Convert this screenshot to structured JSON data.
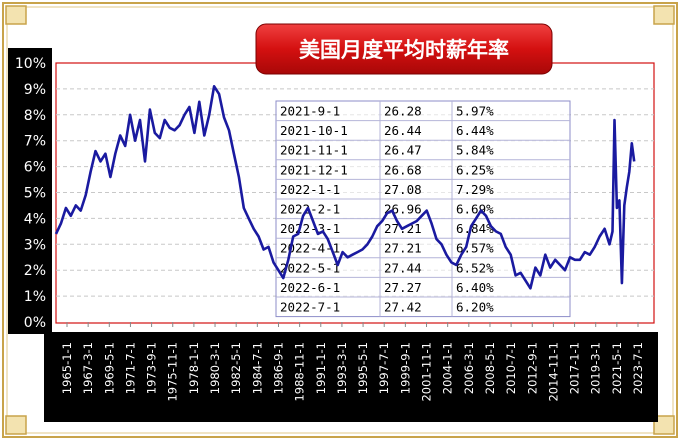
{
  "chart_data": {
    "type": "line",
    "title": "美国月度平均时薪年率",
    "xlabel": "",
    "ylabel": "",
    "ylim": [
      0,
      10
    ],
    "yticks": [
      "0%",
      "1%",
      "2%",
      "3%",
      "4%",
      "5%",
      "6%",
      "7%",
      "8%",
      "9%",
      "10%"
    ],
    "xticks": [
      "1965-1-1",
      "1967-3-1",
      "1969-5-1",
      "1971-7-1",
      "1973-9-1",
      "1975-11-1",
      "1978-1-1",
      "1980-3-1",
      "1982-5-1",
      "1984-7-1",
      "1986-9-1",
      "1988-11-1",
      "1991-1-1",
      "1993-3-1",
      "1995-5-1",
      "1997-7-1",
      "1999-9-1",
      "2001-11-1",
      "2004-1-1",
      "2006-3-1",
      "2008-5-1",
      "2010-7-1",
      "2012-9-1",
      "2014-11-1",
      "2017-1-1",
      "2019-3-1",
      "2021-5-1",
      "2023-7-1"
    ],
    "grid": true,
    "line_color": "#1a1aa0",
    "series": [
      {
        "x": [
          1964.0,
          1964.5,
          1965.0,
          1965.5,
          1966.0,
          1966.5,
          1967.0,
          1967.5,
          1968.0,
          1968.5,
          1969.0,
          1969.5,
          1970.0,
          1970.5,
          1971.0,
          1971.5,
          1972.0,
          1972.5,
          1973.0,
          1973.5,
          1974.0,
          1974.5,
          1975.0,
          1975.5,
          1976.0,
          1976.5,
          1977.0,
          1977.5,
          1978.0,
          1978.5,
          1979.0,
          1979.5,
          1980.0,
          1980.5,
          1981.0,
          1981.5,
          1982.0,
          1982.5,
          1983.0,
          1983.5,
          1984.0,
          1984.5,
          1985.0,
          1985.5,
          1986.0,
          1986.5,
          1987.0,
          1987.5,
          1988.0,
          1988.5,
          1989.0,
          1989.5,
          1990.0,
          1990.5,
          1991.0,
          1991.5,
          1992.0,
          1992.5,
          1993.0,
          1993.5,
          1994.0,
          1994.5,
          1995.0,
          1995.5,
          1996.0,
          1996.5,
          1997.0,
          1997.5,
          1998.0,
          1998.5,
          1999.0,
          1999.5,
          2000.0,
          2000.5,
          2001.0,
          2001.5,
          2002.0,
          2002.5,
          2003.0,
          2003.5,
          2004.0,
          2004.5,
          2005.0,
          2005.5,
          2006.0,
          2006.5,
          2007.0,
          2007.5,
          2008.0,
          2008.5,
          2009.0,
          2009.5,
          2010.0,
          2010.5,
          2011.0,
          2011.5,
          2012.0,
          2012.5,
          2013.0,
          2013.5,
          2014.0,
          2014.5,
          2015.0,
          2015.5,
          2016.0,
          2016.5,
          2017.0,
          2017.5,
          2018.0,
          2018.5,
          2019.0,
          2019.5,
          2020.0,
          2020.3,
          2020.5,
          2020.75,
          2021.0,
          2021.25,
          2021.5,
          2021.75,
          2022.0,
          2022.25,
          2022.5
        ],
        "values": [
          3.4,
          3.8,
          4.4,
          4.1,
          4.5,
          4.3,
          4.9,
          5.8,
          6.6,
          6.2,
          6.5,
          5.6,
          6.5,
          7.2,
          6.8,
          8.0,
          7.0,
          7.8,
          6.2,
          8.2,
          7.3,
          7.1,
          7.8,
          7.5,
          7.4,
          7.6,
          8.0,
          8.3,
          7.3,
          8.5,
          7.2,
          8.0,
          9.1,
          8.8,
          7.9,
          7.4,
          6.5,
          5.6,
          4.4,
          4.0,
          3.6,
          3.3,
          2.8,
          2.9,
          2.3,
          2.0,
          1.7,
          2.4,
          3.3,
          3.4,
          4.1,
          4.4,
          3.9,
          3.4,
          3.5,
          3.2,
          2.7,
          2.2,
          2.7,
          2.5,
          2.6,
          2.7,
          2.8,
          3.0,
          3.3,
          3.7,
          3.9,
          4.2,
          4.3,
          3.9,
          3.6,
          3.7,
          3.8,
          3.9,
          4.1,
          4.3,
          3.8,
          3.2,
          3.0,
          2.6,
          2.3,
          2.2,
          2.6,
          2.9,
          3.7,
          4.0,
          4.3,
          4.1,
          3.7,
          3.5,
          3.4,
          2.9,
          2.6,
          1.8,
          1.9,
          1.6,
          1.3,
          2.1,
          1.8,
          2.6,
          2.1,
          2.4,
          2.2,
          2.0,
          2.5,
          2.4,
          2.4,
          2.7,
          2.6,
          2.9,
          3.3,
          3.6,
          3.0,
          3.5,
          7.8,
          4.4,
          4.7,
          1.5,
          4.5,
          5.2,
          5.8,
          6.9,
          6.2
        ]
      }
    ]
  },
  "table": {
    "rows": [
      [
        "2021-9-1",
        "26.28",
        "5.97%"
      ],
      [
        "2021-10-1",
        "26.44",
        "6.44%"
      ],
      [
        "2021-11-1",
        "26.47",
        "5.84%"
      ],
      [
        "2021-12-1",
        "26.68",
        "6.25%"
      ],
      [
        "2022-1-1",
        "27.08",
        "7.29%"
      ],
      [
        "2022-2-1",
        "26.96",
        "6.69%"
      ],
      [
        "2022-3-1",
        "27.21",
        "6.84%"
      ],
      [
        "2022-4-1",
        "27.21",
        "6.57%"
      ],
      [
        "2022-5-1",
        "27.44",
        "6.52%"
      ],
      [
        "2022-6-1",
        "27.27",
        "6.40%"
      ],
      [
        "2022-7-1",
        "27.42",
        "6.20%"
      ]
    ]
  },
  "colors": {
    "title_fill": "#d41010",
    "title_text": "#ffffff",
    "axis_bar": "#000000",
    "axis_text": "#ffffff",
    "frame_gold": "#c8a34a"
  }
}
